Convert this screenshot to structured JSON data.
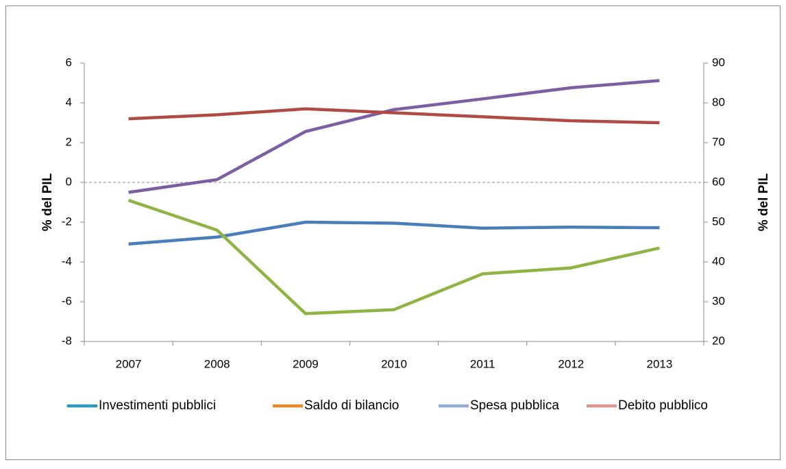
{
  "chart_data": {
    "type": "line",
    "categories": [
      "2007",
      "2008",
      "2009",
      "2010",
      "2011",
      "2012",
      "2013"
    ],
    "ylabel": "% del PIL",
    "y2label": "% del PIL",
    "ylim": [
      -8,
      6
    ],
    "yticks": [
      -8,
      -6,
      -4,
      -2,
      0,
      2,
      4,
      6
    ],
    "y2lim": [
      20,
      90
    ],
    "y2ticks": [
      20,
      30,
      40,
      50,
      60,
      70,
      80,
      90
    ],
    "zero_line": true,
    "series": [
      {
        "name": "Investimenti pubblici",
        "color": "#4a7ebb",
        "legend_color": "#2e9bb8",
        "values": [
          -3.1,
          -2.75,
          -2.0,
          -2.05,
          -2.3,
          -2.25,
          -2.28
        ]
      },
      {
        "name": "Saldo di bilancio",
        "color": "#8fb443",
        "legend_color": "#e8882f",
        "values": [
          -0.9,
          -2.4,
          -6.6,
          -6.4,
          -4.6,
          -4.3,
          -3.3
        ]
      },
      {
        "name": "Spesa pubblica",
        "color": "#7c5fa3",
        "legend_color": "#94acd6",
        "axis": "y2",
        "values": [
          57.5,
          60.7,
          72.8,
          78.3,
          81.0,
          83.8,
          85.6
        ]
      },
      {
        "name": "Debito pubblico",
        "color": "#b04a45",
        "legend_color": "#d99694",
        "axis": "y2",
        "values": [
          76,
          77,
          78.5,
          77.5,
          76.5,
          75.5,
          75
        ]
      }
    ]
  }
}
